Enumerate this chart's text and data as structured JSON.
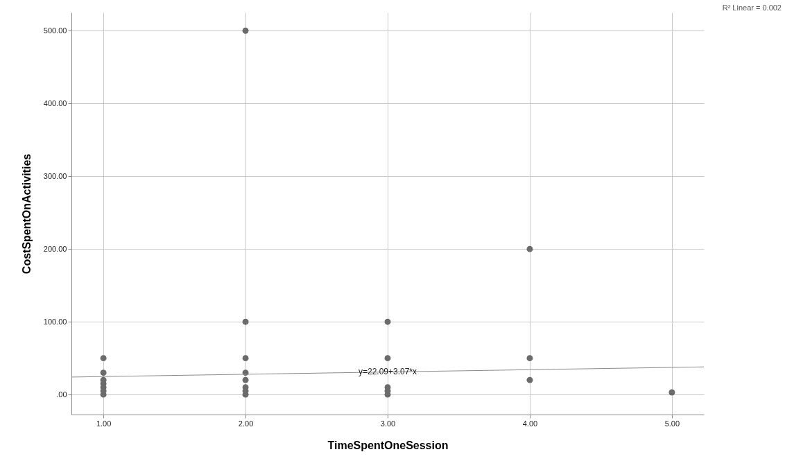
{
  "chart_data": {
    "type": "scatter",
    "xlabel": "TimeSpentOneSession",
    "ylabel": "CostSpentOnActivities",
    "xlim": [
      0.775,
      5.225
    ],
    "ylim": [
      -27.5,
      525
    ],
    "xticks": [
      {
        "value": 1,
        "label": "1.00"
      },
      {
        "value": 2,
        "label": "2.00"
      },
      {
        "value": 3,
        "label": "3.00"
      },
      {
        "value": 4,
        "label": "4.00"
      },
      {
        "value": 5,
        "label": "5.00"
      }
    ],
    "yticks": [
      {
        "value": 0,
        "label": ".00"
      },
      {
        "value": 100,
        "label": "100.00"
      },
      {
        "value": 200,
        "label": "200.00"
      },
      {
        "value": 300,
        "label": "300.00"
      },
      {
        "value": 400,
        "label": "400.00"
      },
      {
        "value": 500,
        "label": "500.00"
      }
    ],
    "grid": true,
    "series": [
      {
        "marker": "circle",
        "color": "#6b6b6b",
        "x": [
          1,
          1,
          1,
          1,
          1,
          1,
          1,
          2,
          2,
          2,
          2,
          2,
          2,
          2,
          2,
          3,
          3,
          3,
          3,
          3,
          4,
          4,
          4,
          5
        ],
        "values": [
          50,
          30,
          20,
          15,
          10,
          5,
          0,
          500,
          100,
          50,
          30,
          20,
          10,
          5,
          0,
          100,
          50,
          10,
          5,
          0,
          200,
          50,
          20,
          3
        ]
      },
      {
        "type": "line",
        "color": "#8a8a8a",
        "x": [
          0.775,
          5.225
        ],
        "values": [
          24,
          38
        ]
      }
    ],
    "annotations": [
      {
        "text": "y=22.09+3.07*x",
        "x": 3,
        "y": 31.3
      },
      "R² Linear = 0.002"
    ]
  }
}
